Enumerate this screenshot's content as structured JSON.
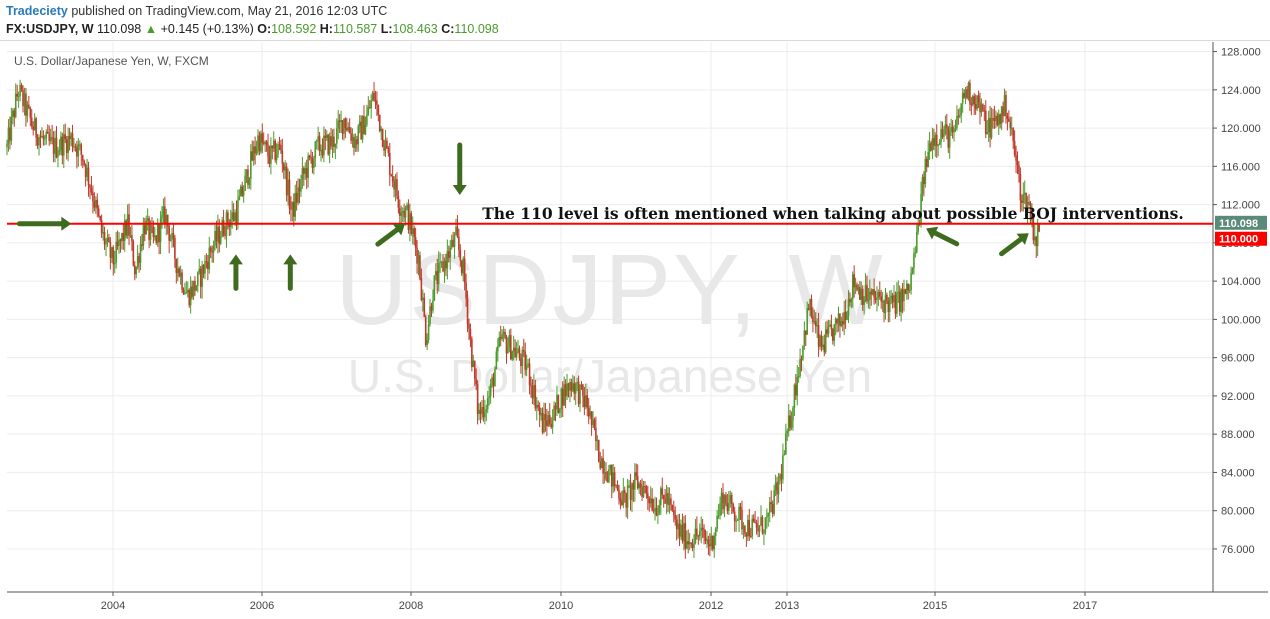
{
  "header": {
    "author": "Tradeciety",
    "published": " published on TradingView.com, May 21, 2016 12:03 UTC",
    "symbol": "FX:USDJPY, W",
    "last": "110.098",
    "change_arrow": "▲",
    "change": "+0.145 (+0.13%)",
    "o_label": "O:",
    "o_value": "108.592",
    "h_label": "H:",
    "h_value": "110.587",
    "l_label": "L:",
    "l_value": "108.463",
    "c_label": "C:",
    "c_value": "110.098"
  },
  "colors": {
    "up": "#4b9a2c",
    "down": "#c0392b",
    "level_line": "#ff0000",
    "price_tag": "#5a8a78",
    "level_tag": "#ff0000",
    "arrows": "#3f6b1f"
  },
  "watermark": {
    "symbol": "USDJPY, W",
    "name": "U.S. Dollar/Japanese Yen"
  },
  "chart_data": {
    "type": "candlestick",
    "title": "U.S. Dollar/Japanese Yen, W, FXCM",
    "y_axis_position": "right",
    "ylim": [
      71.5,
      129.0
    ],
    "y_ticks": [
      "128.000",
      "124.000",
      "120.000",
      "116.000",
      "112.000",
      "108.000",
      "104.000",
      "100.000",
      "96.000",
      "92.000",
      "88.000",
      "84.000",
      "80.000",
      "76.000"
    ],
    "x_ticks": [
      "2004",
      "2006",
      "2008",
      "2010",
      "2012",
      "2013",
      "2015",
      "2017"
    ],
    "x_tick_dates": [
      2004.0,
      2006.0,
      2008.0,
      2010.0,
      2012.0,
      2013.0,
      2015.0,
      2017.0
    ],
    "x_range": [
      2002.6,
      2018.6
    ],
    "price_path": [
      [
        2002.6,
        118.0
      ],
      [
        2002.75,
        124.0
      ],
      [
        2002.95,
        120.0
      ],
      [
        2003.1,
        118.5
      ],
      [
        2003.25,
        118.0
      ],
      [
        2003.45,
        119.0
      ],
      [
        2003.6,
        117.0
      ],
      [
        2003.72,
        113.5
      ],
      [
        2003.85,
        109.0
      ],
      [
        2004.0,
        106.0
      ],
      [
        2004.2,
        110.0
      ],
      [
        2004.3,
        105.0
      ],
      [
        2004.42,
        110.0
      ],
      [
        2004.55,
        108.0
      ],
      [
        2004.7,
        111.0
      ],
      [
        2004.85,
        106.0
      ],
      [
        2005.0,
        102.5
      ],
      [
        2005.15,
        104.0
      ],
      [
        2005.3,
        107.0
      ],
      [
        2005.5,
        110.0
      ],
      [
        2005.65,
        111.0
      ],
      [
        2005.8,
        115.0
      ],
      [
        2005.95,
        119.0
      ],
      [
        2006.1,
        117.0
      ],
      [
        2006.25,
        118.0
      ],
      [
        2006.4,
        111.0
      ],
      [
        2006.55,
        115.0
      ],
      [
        2006.75,
        118.0
      ],
      [
        2006.95,
        118.5
      ],
      [
        2007.1,
        121.0
      ],
      [
        2007.25,
        118.5
      ],
      [
        2007.4,
        121.0
      ],
      [
        2007.5,
        123.5
      ],
      [
        2007.6,
        120.0
      ],
      [
        2007.72,
        116.0
      ],
      [
        2007.85,
        112.0
      ],
      [
        2007.95,
        111.0
      ],
      [
        2008.1,
        106.5
      ],
      [
        2008.2,
        98.0
      ],
      [
        2008.3,
        103.5
      ],
      [
        2008.45,
        106.0
      ],
      [
        2008.6,
        108.5
      ],
      [
        2008.7,
        105.0
      ],
      [
        2008.8,
        97.0
      ],
      [
        2008.9,
        90.0
      ],
      [
        2009.05,
        92.0
      ],
      [
        2009.2,
        98.0
      ],
      [
        2009.35,
        97.0
      ],
      [
        2009.55,
        95.0
      ],
      [
        2009.75,
        89.0
      ],
      [
        2009.9,
        90.0
      ],
      [
        2010.0,
        92.0
      ],
      [
        2010.15,
        93.5
      ],
      [
        2010.35,
        91.0
      ],
      [
        2010.5,
        86.0
      ],
      [
        2010.7,
        83.0
      ],
      [
        2010.85,
        81.0
      ],
      [
        2011.0,
        83.0
      ],
      [
        2011.15,
        82.0
      ],
      [
        2011.25,
        80.5
      ],
      [
        2011.4,
        81.5
      ],
      [
        2011.55,
        78.0
      ],
      [
        2011.7,
        77.0
      ],
      [
        2011.85,
        77.5
      ],
      [
        2012.0,
        76.5
      ],
      [
        2012.15,
        81.5
      ],
      [
        2012.3,
        80.0
      ],
      [
        2012.45,
        78.5
      ],
      [
        2012.6,
        78.0
      ],
      [
        2012.75,
        79.0
      ],
      [
        2012.9,
        83.0
      ],
      [
        2013.05,
        90.0
      ],
      [
        2013.2,
        97.0
      ],
      [
        2013.3,
        101.5
      ],
      [
        2013.45,
        97.0
      ],
      [
        2013.6,
        98.5
      ],
      [
        2013.75,
        100.0
      ],
      [
        2013.9,
        104.0
      ],
      [
        2014.05,
        102.5
      ],
      [
        2014.25,
        102.0
      ],
      [
        2014.45,
        101.5
      ],
      [
        2014.65,
        103.0
      ],
      [
        2014.75,
        108.0
      ],
      [
        2014.85,
        115.0
      ],
      [
        2014.95,
        119.0
      ],
      [
        2015.1,
        119.5
      ],
      [
        2015.25,
        119.0
      ],
      [
        2015.4,
        124.0
      ],
      [
        2015.55,
        123.0
      ],
      [
        2015.7,
        120.0
      ],
      [
        2015.85,
        121.0
      ],
      [
        2015.95,
        122.5
      ],
      [
        2016.05,
        118.0
      ],
      [
        2016.15,
        113.0
      ],
      [
        2016.25,
        112.0
      ],
      [
        2016.35,
        108.0
      ],
      [
        2016.39,
        110.1
      ]
    ],
    "horizontal_line": {
      "value": 110.0,
      "label": "110.000"
    },
    "last_price": {
      "value": 110.098,
      "label": "110.098"
    },
    "annotation": "The 110 level is often mentioned when talking about possible BOJ interventions.",
    "annotation_anchor": {
      "date": 2008.95,
      "value": 110.3
    },
    "arrows": [
      {
        "tip_date": 2003.45,
        "tip_value": 110.0,
        "direction": "right"
      },
      {
        "tip_date": 2005.65,
        "tip_value": 106.8,
        "direction": "up"
      },
      {
        "tip_date": 2006.38,
        "tip_value": 106.8,
        "direction": "up"
      },
      {
        "tip_date": 2007.92,
        "tip_value": 110.0,
        "direction": "up-right"
      },
      {
        "tip_date": 2008.65,
        "tip_value": 113.0,
        "direction": "down"
      },
      {
        "tip_date": 2014.88,
        "tip_value": 109.5,
        "direction": "up-left"
      },
      {
        "tip_date": 2016.25,
        "tip_value": 109.0,
        "direction": "up-right"
      }
    ]
  }
}
